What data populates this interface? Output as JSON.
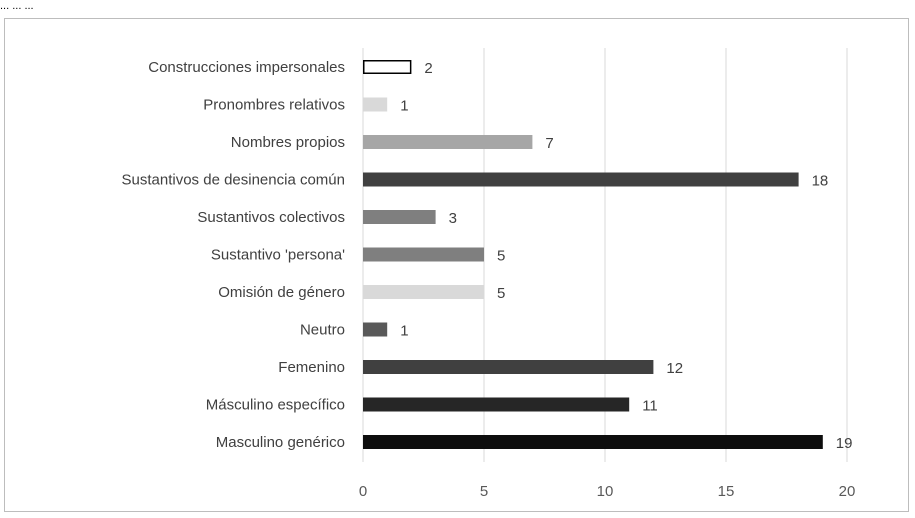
{
  "page": {
    "top_fragment": "... ... ..."
  },
  "chart_data": {
    "type": "bar",
    "orientation": "horizontal",
    "title": "",
    "xlabel": "",
    "ylabel": "",
    "xlim": [
      0,
      20
    ],
    "ticks": [
      0,
      5,
      10,
      15,
      20
    ],
    "grid": "vertical",
    "legend": "none",
    "categories": [
      "Construcciones impersonales",
      "Pronombres relativos",
      "Nombres propios",
      "Sustantivos de desinencia común",
      "Sustantivos colectivos",
      "Sustantivo 'persona'",
      "Omisión de género",
      "Neutro",
      "Femenino",
      "Másculino específico",
      "Masculino genérico"
    ],
    "values": [
      2,
      1,
      7,
      18,
      3,
      5,
      5,
      1,
      12,
      11,
      19
    ],
    "bar_colors": [
      "#ffffff",
      "#d9d9d9",
      "#a6a6a6",
      "#404040",
      "#7f7f7f",
      "#7f7f7f",
      "#d9d9d9",
      "#595959",
      "#404040",
      "#262626",
      "#0d0d0d"
    ],
    "bar_outline": [
      "#000000",
      "none",
      "none",
      "none",
      "none",
      "none",
      "none",
      "none",
      "none",
      "none",
      "none"
    ],
    "grid_color": "#d9d9d9"
  }
}
